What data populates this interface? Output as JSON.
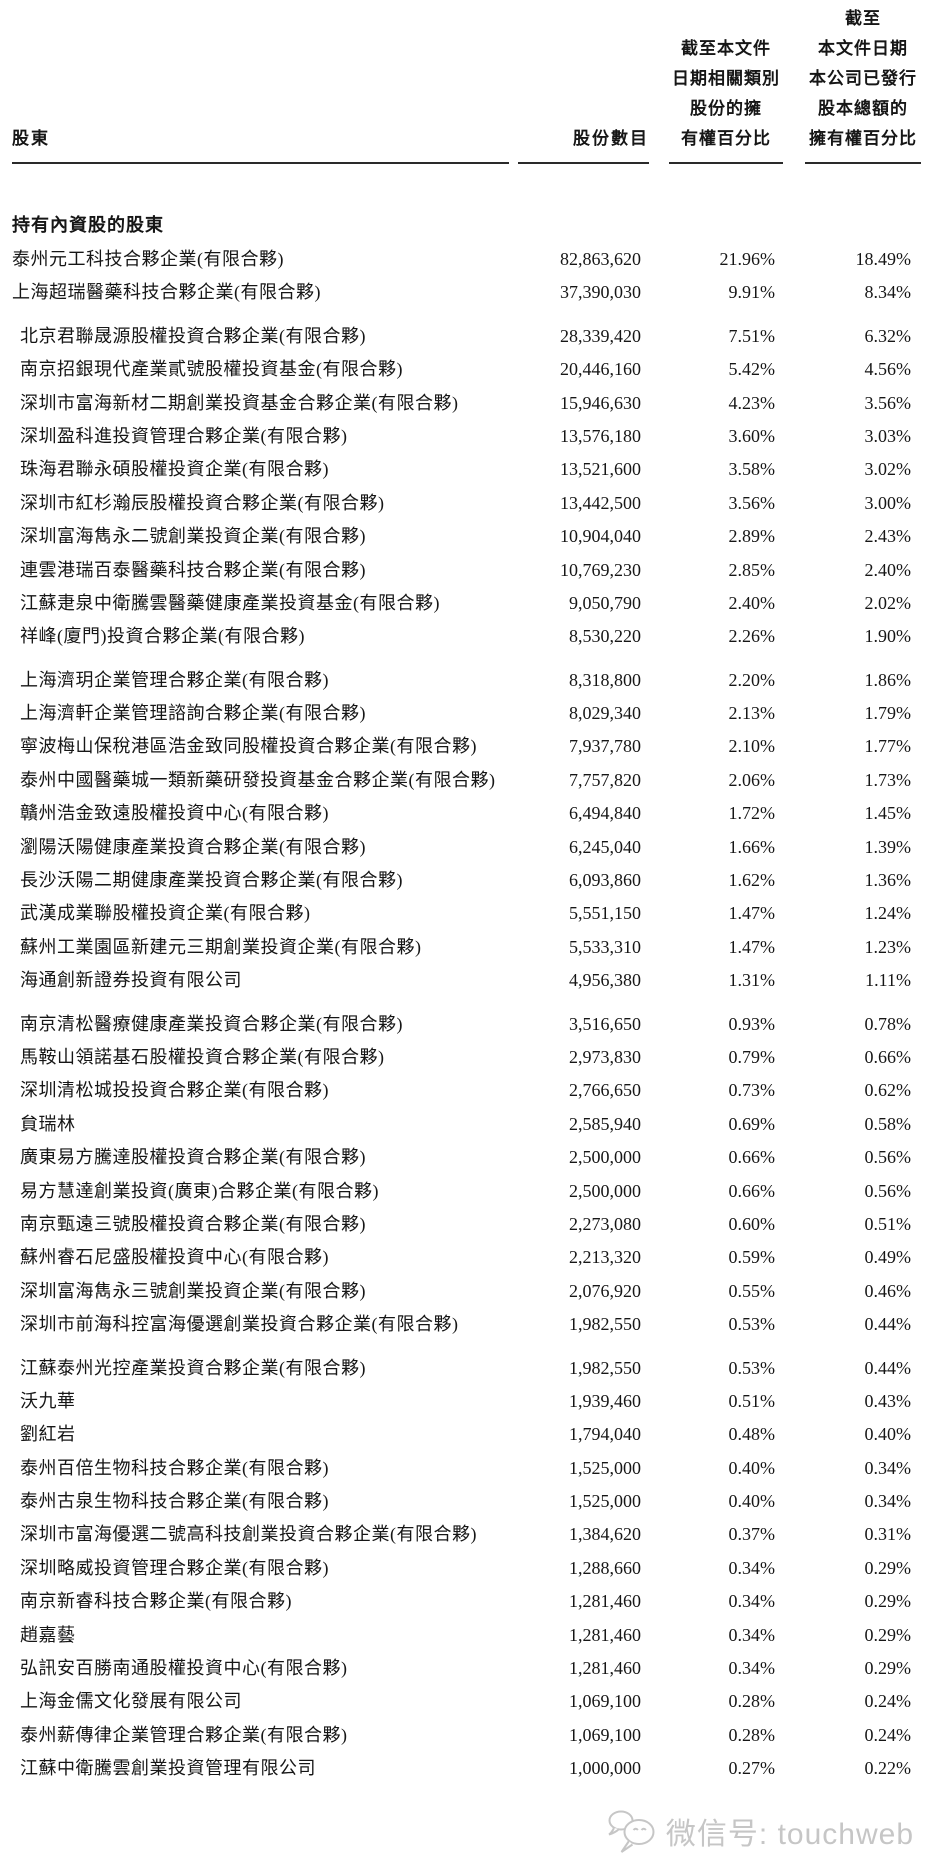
{
  "table": {
    "col1_header": "股東",
    "col2_header": "股份數目",
    "col3_header_lines": [
      "截至本文件",
      "日期相關類別",
      "股份的擁",
      "有權百分比"
    ],
    "col4_header_lines": [
      "截至",
      "本文件日期",
      "本公司已發行",
      "股本總額的",
      "擁有權百分比"
    ],
    "section_title": "持有內資股的股東",
    "rows": [
      {
        "name": "泰州元工科技合夥企業(有限合夥)",
        "shares": "82,863,620",
        "pct_class": "21.96%",
        "pct_total": "18.49%",
        "indent": false,
        "gap": false
      },
      {
        "name": "上海超瑞醫藥科技合夥企業(有限合夥)",
        "shares": "37,390,030",
        "pct_class": "9.91%",
        "pct_total": "8.34%",
        "indent": false,
        "gap": false
      },
      {
        "name": "北京君聯晟源股權投資合夥企業(有限合夥)",
        "shares": "28,339,420",
        "pct_class": "7.51%",
        "pct_total": "6.32%",
        "indent": true,
        "gap": true
      },
      {
        "name": "南京招銀現代產業貳號股權投資基金(有限合夥)",
        "shares": "20,446,160",
        "pct_class": "5.42%",
        "pct_total": "4.56%",
        "indent": true,
        "gap": false
      },
      {
        "name": "深圳市富海新材二期創業投資基金合夥企業(有限合夥)",
        "shares": "15,946,630",
        "pct_class": "4.23%",
        "pct_total": "3.56%",
        "indent": true,
        "gap": false
      },
      {
        "name": "深圳盈科進投資管理合夥企業(有限合夥)",
        "shares": "13,576,180",
        "pct_class": "3.60%",
        "pct_total": "3.03%",
        "indent": true,
        "gap": false
      },
      {
        "name": "珠海君聯永碩股權投資企業(有限合夥)",
        "shares": "13,521,600",
        "pct_class": "3.58%",
        "pct_total": "3.02%",
        "indent": true,
        "gap": false
      },
      {
        "name": "深圳市紅杉瀚辰股權投資合夥企業(有限合夥)",
        "shares": "13,442,500",
        "pct_class": "3.56%",
        "pct_total": "3.00%",
        "indent": true,
        "gap": false
      },
      {
        "name": "深圳富海雋永二號創業投資企業(有限合夥)",
        "shares": "10,904,040",
        "pct_class": "2.89%",
        "pct_total": "2.43%",
        "indent": true,
        "gap": false
      },
      {
        "name": "連雲港瑞百泰醫藥科技合夥企業(有限合夥)",
        "shares": "10,769,230",
        "pct_class": "2.85%",
        "pct_total": "2.40%",
        "indent": true,
        "gap": false
      },
      {
        "name": "江蘇疌泉中衛騰雲醫藥健康產業投資基金(有限合夥)",
        "shares": "9,050,790",
        "pct_class": "2.40%",
        "pct_total": "2.02%",
        "indent": true,
        "gap": false
      },
      {
        "name": "祥峰(廈門)投資合夥企業(有限合夥)",
        "shares": "8,530,220",
        "pct_class": "2.26%",
        "pct_total": "1.90%",
        "indent": true,
        "gap": false
      },
      {
        "name": "上海濟玥企業管理合夥企業(有限合夥)",
        "shares": "8,318,800",
        "pct_class": "2.20%",
        "pct_total": "1.86%",
        "indent": true,
        "gap": true
      },
      {
        "name": "上海濟軒企業管理諮詢合夥企業(有限合夥)",
        "shares": "8,029,340",
        "pct_class": "2.13%",
        "pct_total": "1.79%",
        "indent": true,
        "gap": false
      },
      {
        "name": "寧波梅山保稅港區浩金致同股權投資合夥企業(有限合夥)",
        "shares": "7,937,780",
        "pct_class": "2.10%",
        "pct_total": "1.77%",
        "indent": true,
        "gap": false
      },
      {
        "name": "泰州中國醫藥城一類新藥研發投資基金合夥企業(有限合夥)",
        "shares": "7,757,820",
        "pct_class": "2.06%",
        "pct_total": "1.73%",
        "indent": true,
        "gap": false
      },
      {
        "name": "贛州浩金致遠股權投資中心(有限合夥)",
        "shares": "6,494,840",
        "pct_class": "1.72%",
        "pct_total": "1.45%",
        "indent": true,
        "gap": false
      },
      {
        "name": "瀏陽沃陽健康產業投資合夥企業(有限合夥)",
        "shares": "6,245,040",
        "pct_class": "1.66%",
        "pct_total": "1.39%",
        "indent": true,
        "gap": false
      },
      {
        "name": "長沙沃陽二期健康產業投資合夥企業(有限合夥)",
        "shares": "6,093,860",
        "pct_class": "1.62%",
        "pct_total": "1.36%",
        "indent": true,
        "gap": false
      },
      {
        "name": "武漢成業聯股權投資企業(有限合夥)",
        "shares": "5,551,150",
        "pct_class": "1.47%",
        "pct_total": "1.24%",
        "indent": true,
        "gap": false
      },
      {
        "name": "蘇州工業園區新建元三期創業投資企業(有限合夥)",
        "shares": "5,533,310",
        "pct_class": "1.47%",
        "pct_total": "1.23%",
        "indent": true,
        "gap": false
      },
      {
        "name": "海通創新證券投資有限公司",
        "shares": "4,956,380",
        "pct_class": "1.31%",
        "pct_total": "1.11%",
        "indent": true,
        "gap": false
      },
      {
        "name": "南京清松醫療健康產業投資合夥企業(有限合夥)",
        "shares": "3,516,650",
        "pct_class": "0.93%",
        "pct_total": "0.78%",
        "indent": true,
        "gap": true
      },
      {
        "name": "馬鞍山領諾基石股權投資合夥企業(有限合夥)",
        "shares": "2,973,830",
        "pct_class": "0.79%",
        "pct_total": "0.66%",
        "indent": true,
        "gap": false
      },
      {
        "name": "深圳清松城投投資合夥企業(有限合夥)",
        "shares": "2,766,650",
        "pct_class": "0.73%",
        "pct_total": "0.62%",
        "indent": true,
        "gap": false
      },
      {
        "name": "貟瑞林",
        "shares": "2,585,940",
        "pct_class": "0.69%",
        "pct_total": "0.58%",
        "indent": true,
        "gap": false
      },
      {
        "name": "廣東易方騰達股權投資合夥企業(有限合夥)",
        "shares": "2,500,000",
        "pct_class": "0.66%",
        "pct_total": "0.56%",
        "indent": true,
        "gap": false
      },
      {
        "name": "易方慧達創業投資(廣東)合夥企業(有限合夥)",
        "shares": "2,500,000",
        "pct_class": "0.66%",
        "pct_total": "0.56%",
        "indent": true,
        "gap": false
      },
      {
        "name": "南京甄遠三號股權投資合夥企業(有限合夥)",
        "shares": "2,273,080",
        "pct_class": "0.60%",
        "pct_total": "0.51%",
        "indent": true,
        "gap": false
      },
      {
        "name": "蘇州睿石尼盛股權投資中心(有限合夥)",
        "shares": "2,213,320",
        "pct_class": "0.59%",
        "pct_total": "0.49%",
        "indent": true,
        "gap": false
      },
      {
        "name": "深圳富海雋永三號創業投資企業(有限合夥)",
        "shares": "2,076,920",
        "pct_class": "0.55%",
        "pct_total": "0.46%",
        "indent": true,
        "gap": false
      },
      {
        "name": "深圳市前海科控富海優選創業投資合夥企業(有限合夥)",
        "shares": "1,982,550",
        "pct_class": "0.53%",
        "pct_total": "0.44%",
        "indent": true,
        "gap": false
      },
      {
        "name": "江蘇泰州光控產業投資合夥企業(有限合夥)",
        "shares": "1,982,550",
        "pct_class": "0.53%",
        "pct_total": "0.44%",
        "indent": true,
        "gap": true
      },
      {
        "name": "沃九華",
        "shares": "1,939,460",
        "pct_class": "0.51%",
        "pct_total": "0.43%",
        "indent": true,
        "gap": false
      },
      {
        "name": "劉紅岩",
        "shares": "1,794,040",
        "pct_class": "0.48%",
        "pct_total": "0.40%",
        "indent": true,
        "gap": false
      },
      {
        "name": "泰州百倍生物科技合夥企業(有限合夥)",
        "shares": "1,525,000",
        "pct_class": "0.40%",
        "pct_total": "0.34%",
        "indent": true,
        "gap": false
      },
      {
        "name": "泰州古泉生物科技合夥企業(有限合夥)",
        "shares": "1,525,000",
        "pct_class": "0.40%",
        "pct_total": "0.34%",
        "indent": true,
        "gap": false
      },
      {
        "name": "深圳市富海優選二號高科技創業投資合夥企業(有限合夥)",
        "shares": "1,384,620",
        "pct_class": "0.37%",
        "pct_total": "0.31%",
        "indent": true,
        "gap": false
      },
      {
        "name": "深圳略威投資管理合夥企業(有限合夥)",
        "shares": "1,288,660",
        "pct_class": "0.34%",
        "pct_total": "0.29%",
        "indent": true,
        "gap": false
      },
      {
        "name": "南京新睿科技合夥企業(有限合夥)",
        "shares": "1,281,460",
        "pct_class": "0.34%",
        "pct_total": "0.29%",
        "indent": true,
        "gap": false
      },
      {
        "name": "趙嘉藝",
        "shares": "1,281,460",
        "pct_class": "0.34%",
        "pct_total": "0.29%",
        "indent": true,
        "gap": false
      },
      {
        "name": "弘訊安百勝南通股權投資中心(有限合夥)",
        "shares": "1,281,460",
        "pct_class": "0.34%",
        "pct_total": "0.29%",
        "indent": true,
        "gap": false
      },
      {
        "name": "上海金儒文化發展有限公司",
        "shares": "1,069,100",
        "pct_class": "0.28%",
        "pct_total": "0.24%",
        "indent": true,
        "gap": false
      },
      {
        "name": "泰州薪傳律企業管理合夥企業(有限合夥)",
        "shares": "1,069,100",
        "pct_class": "0.28%",
        "pct_total": "0.24%",
        "indent": true,
        "gap": false
      },
      {
        "name": "江蘇中衛騰雲創業投資管理有限公司",
        "shares": "1,000,000",
        "pct_class": "0.27%",
        "pct_total": "0.22%",
        "indent": true,
        "gap": false
      }
    ]
  },
  "watermark": {
    "label": "微信号: touchweb",
    "color": "#c6c6c6"
  }
}
